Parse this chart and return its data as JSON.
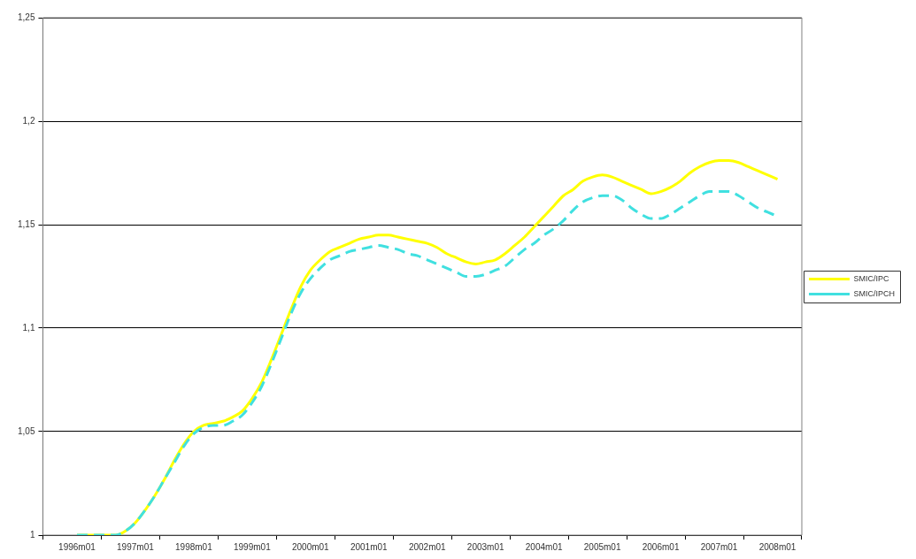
{
  "chart_data": {
    "type": "line",
    "categories": [
      null,
      null,
      null,
      "1996m01",
      null,
      null,
      null,
      null,
      null,
      "1997m01",
      null,
      null,
      null,
      null,
      null,
      "1998m01",
      null,
      null,
      null,
      null,
      null,
      "1999m01",
      null,
      null,
      null,
      null,
      null,
      "2000m01",
      null,
      null,
      null,
      null,
      null,
      "2001m01",
      null,
      null,
      null,
      null,
      null,
      "2002m01",
      null,
      null,
      null,
      null,
      null,
      "2003m01",
      null,
      null,
      null,
      null,
      null,
      "2004m01",
      null,
      null,
      null,
      null,
      null,
      "2005m01",
      null,
      null,
      null,
      null,
      null,
      "2006m01",
      null,
      null,
      null,
      null,
      null,
      "2007m01",
      null,
      null,
      null,
      null,
      null,
      "2008m01",
      null,
      null
    ],
    "series": [
      {
        "name": "SMIC/IPC",
        "color": "#ffff00",
        "line_style": "solid",
        "values": [
          null,
          null,
          null,
          1,
          1,
          1,
          1,
          1,
          1.002,
          1.006,
          1.012,
          1.019,
          1.027,
          1.036,
          1.044,
          1.05,
          1.053,
          1.054,
          1.055,
          1.057,
          1.06,
          1.066,
          1.074,
          1.085,
          1.097,
          1.109,
          1.12,
          1.128,
          1.133,
          1.137,
          1.139,
          1.141,
          1.143,
          1.144,
          1.145,
          1.145,
          1.144,
          1.143,
          1.142,
          1.141,
          1.139,
          1.136,
          1.134,
          1.132,
          1.131,
          1.132,
          1.133,
          1.136,
          1.14,
          1.144,
          1.149,
          1.154,
          1.159,
          1.164,
          1.167,
          1.171,
          1.173,
          1.174,
          1.173,
          1.171,
          1.169,
          1.167,
          1.165,
          1.166,
          1.168,
          1.171,
          1.175,
          1.178,
          1.18,
          1.181,
          1.181,
          1.18,
          1.178,
          1.176,
          1.174,
          1.172,
          null,
          null
        ]
      },
      {
        "name": "SMIC/IPCH",
        "color": "#40e0e0",
        "line_style": "dashed",
        "values": [
          null,
          null,
          null,
          1,
          1,
          1,
          1,
          1,
          1.002,
          1.006,
          1.012,
          1.019,
          1.027,
          1.035,
          1.043,
          1.049,
          1.052,
          1.053,
          1.053,
          1.055,
          1.058,
          1.064,
          1.072,
          1.083,
          1.095,
          1.107,
          1.117,
          1.124,
          1.129,
          1.133,
          1.135,
          1.137,
          1.138,
          1.139,
          1.14,
          1.139,
          1.138,
          1.136,
          1.135,
          1.133,
          1.131,
          1.129,
          1.127,
          1.125,
          1.125,
          1.126,
          1.128,
          1.13,
          1.134,
          1.138,
          1.141,
          1.145,
          1.148,
          1.152,
          1.157,
          1.161,
          1.163,
          1.164,
          1.164,
          1.162,
          1.158,
          1.155,
          1.153,
          1.153,
          1.155,
          1.158,
          1.161,
          1.164,
          1.166,
          1.166,
          1.166,
          1.164,
          1.161,
          1.158,
          1.156,
          1.154,
          null,
          null
        ]
      }
    ],
    "ylim": [
      1,
      1.25
    ],
    "yticks": [
      1,
      {
        "value": 1.05,
        "label": "1,05"
      },
      {
        "value": 1.1,
        "label": "1,1"
      },
      {
        "value": 1.15,
        "label": "1,15"
      },
      {
        "value": 1.2,
        "label": "1,2"
      },
      {
        "value": 1.25,
        "label": "1,25"
      }
    ],
    "grid": "y",
    "legend": "right",
    "marker": "none"
  }
}
